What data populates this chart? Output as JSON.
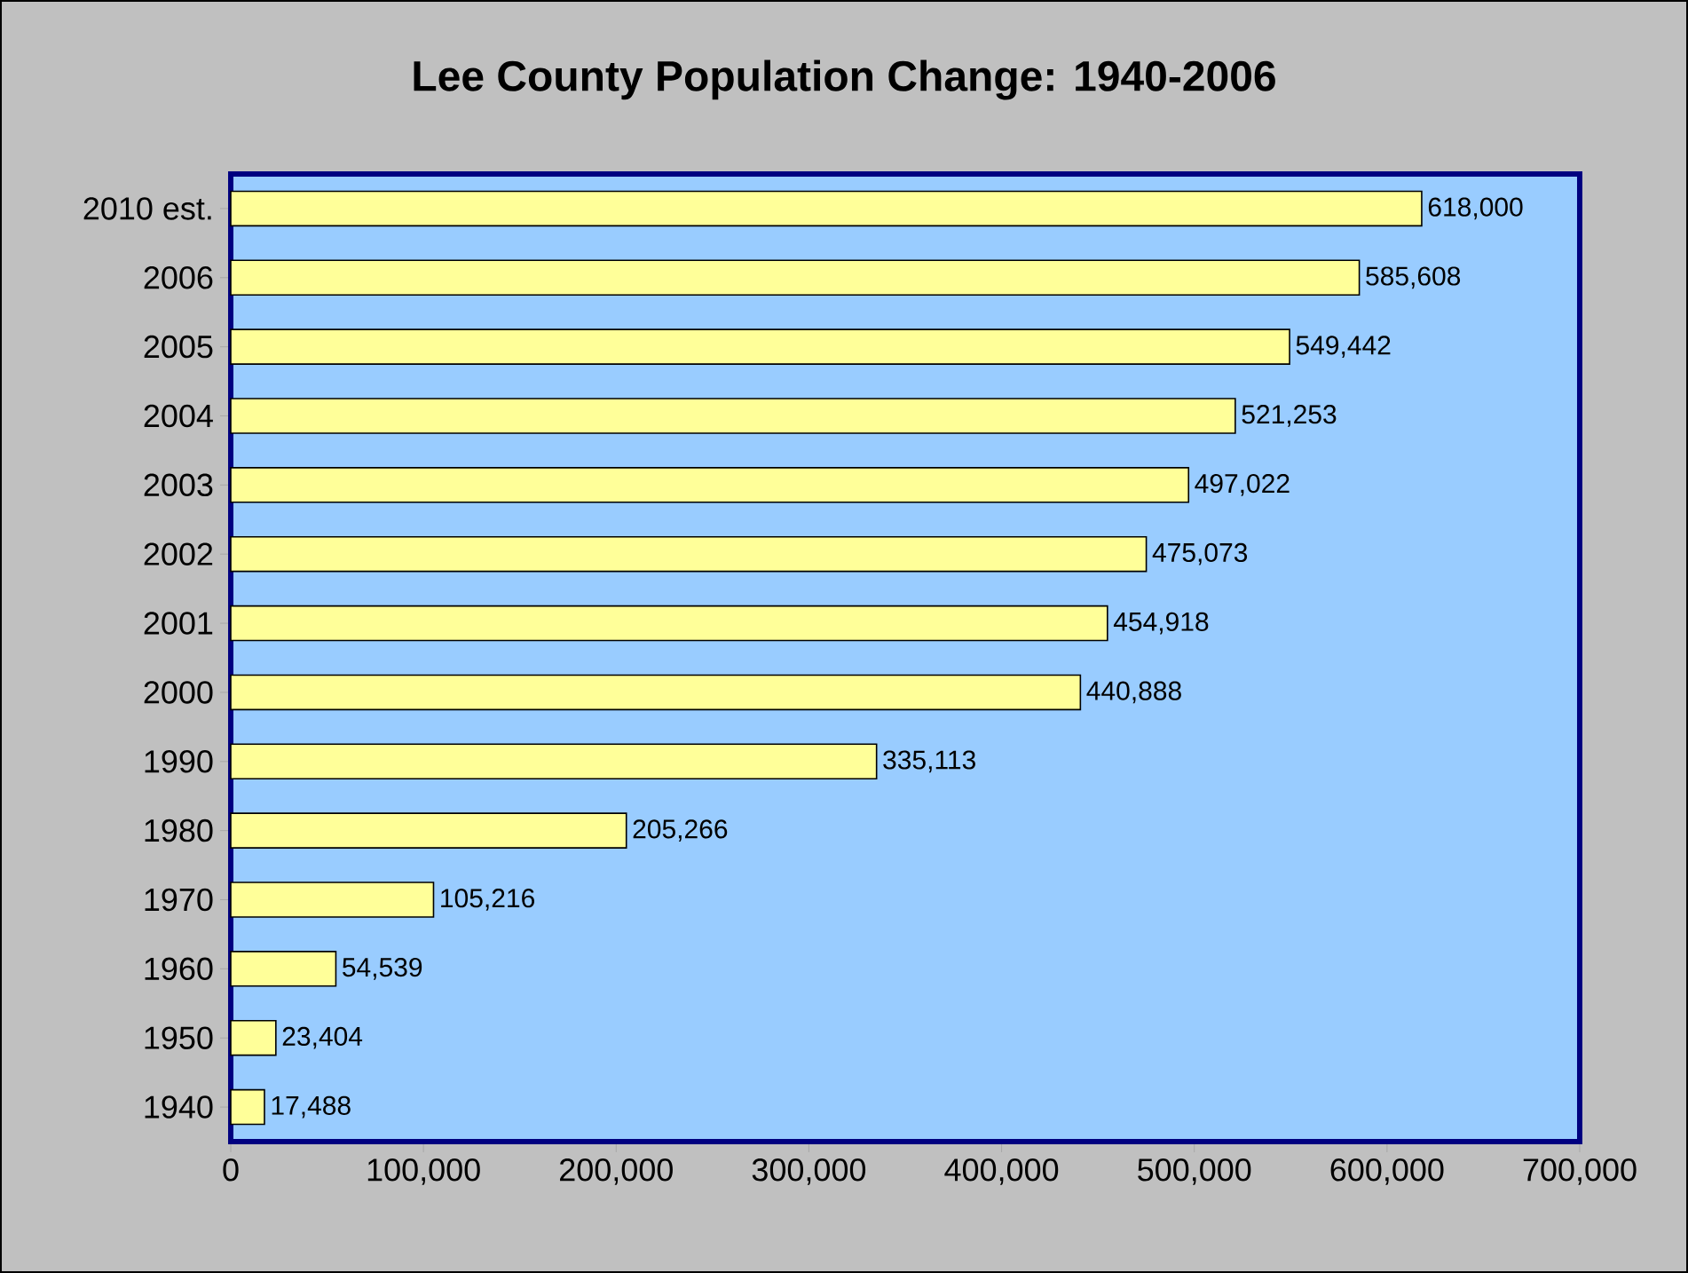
{
  "chart_data": {
    "type": "bar",
    "orientation": "horizontal",
    "title": "Lee County Population Change: 1940-2006",
    "categories": [
      "2010 est.",
      "2006",
      "2005",
      "2004",
      "2003",
      "2002",
      "2001",
      "2000",
      "1990",
      "1980",
      "1970",
      "1960",
      "1950",
      "1940"
    ],
    "values": [
      618000,
      585608,
      549442,
      521253,
      497022,
      475073,
      454918,
      440888,
      335113,
      205266,
      105216,
      54539,
      23404,
      17488
    ],
    "value_labels": [
      "618,000",
      "585,608",
      "549,442",
      "521,253",
      "497,022",
      "475,073",
      "454,918",
      "440,888",
      "335,113",
      "205,266",
      "105,216",
      "54,539",
      "23,404",
      "17,488"
    ],
    "color": "#ffff99",
    "xlim": [
      0,
      700000
    ],
    "xticks": [
      0,
      {
        "value": 100000,
        "label": "100,000"
      },
      {
        "value": 200000,
        "label": "200,000"
      },
      {
        "value": 300000,
        "label": "300,000"
      },
      {
        "value": 400000,
        "label": "400,000"
      },
      {
        "value": 500000,
        "label": "500,000"
      },
      {
        "value": 600000,
        "label": "600,000"
      },
      {
        "value": 700000,
        "label": "700,000"
      }
    ],
    "grid": false
  }
}
